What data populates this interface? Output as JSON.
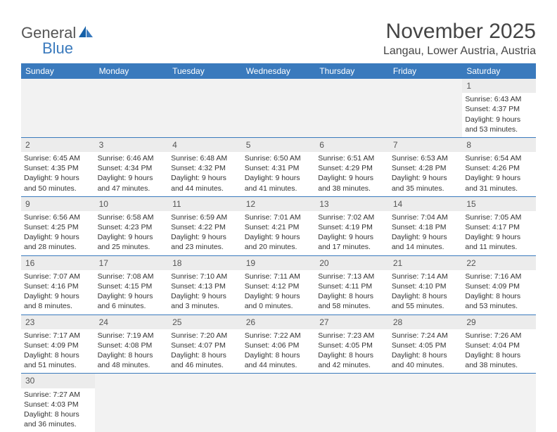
{
  "logo": {
    "text1": "General",
    "text2": "Blue"
  },
  "title": "November 2025",
  "location": "Langau, Lower Austria, Austria",
  "colors": {
    "header_bg": "#3a7abd",
    "header_text": "#ffffff",
    "daynum_bg": "#ececec",
    "border": "#3a7abd",
    "text": "#333333",
    "page_bg": "#ffffff"
  },
  "dayHeaders": [
    "Sunday",
    "Monday",
    "Tuesday",
    "Wednesday",
    "Thursday",
    "Friday",
    "Saturday"
  ],
  "weeks": [
    [
      null,
      null,
      null,
      null,
      null,
      null,
      {
        "n": "1",
        "sr": "6:43 AM",
        "ss": "4:37 PM",
        "dl": "9 hours and 53 minutes."
      }
    ],
    [
      {
        "n": "2",
        "sr": "6:45 AM",
        "ss": "4:35 PM",
        "dl": "9 hours and 50 minutes."
      },
      {
        "n": "3",
        "sr": "6:46 AM",
        "ss": "4:34 PM",
        "dl": "9 hours and 47 minutes."
      },
      {
        "n": "4",
        "sr": "6:48 AM",
        "ss": "4:32 PM",
        "dl": "9 hours and 44 minutes."
      },
      {
        "n": "5",
        "sr": "6:50 AM",
        "ss": "4:31 PM",
        "dl": "9 hours and 41 minutes."
      },
      {
        "n": "6",
        "sr": "6:51 AM",
        "ss": "4:29 PM",
        "dl": "9 hours and 38 minutes."
      },
      {
        "n": "7",
        "sr": "6:53 AM",
        "ss": "4:28 PM",
        "dl": "9 hours and 35 minutes."
      },
      {
        "n": "8",
        "sr": "6:54 AM",
        "ss": "4:26 PM",
        "dl": "9 hours and 31 minutes."
      }
    ],
    [
      {
        "n": "9",
        "sr": "6:56 AM",
        "ss": "4:25 PM",
        "dl": "9 hours and 28 minutes."
      },
      {
        "n": "10",
        "sr": "6:58 AM",
        "ss": "4:23 PM",
        "dl": "9 hours and 25 minutes."
      },
      {
        "n": "11",
        "sr": "6:59 AM",
        "ss": "4:22 PM",
        "dl": "9 hours and 23 minutes."
      },
      {
        "n": "12",
        "sr": "7:01 AM",
        "ss": "4:21 PM",
        "dl": "9 hours and 20 minutes."
      },
      {
        "n": "13",
        "sr": "7:02 AM",
        "ss": "4:19 PM",
        "dl": "9 hours and 17 minutes."
      },
      {
        "n": "14",
        "sr": "7:04 AM",
        "ss": "4:18 PM",
        "dl": "9 hours and 14 minutes."
      },
      {
        "n": "15",
        "sr": "7:05 AM",
        "ss": "4:17 PM",
        "dl": "9 hours and 11 minutes."
      }
    ],
    [
      {
        "n": "16",
        "sr": "7:07 AM",
        "ss": "4:16 PM",
        "dl": "9 hours and 8 minutes."
      },
      {
        "n": "17",
        "sr": "7:08 AM",
        "ss": "4:15 PM",
        "dl": "9 hours and 6 minutes."
      },
      {
        "n": "18",
        "sr": "7:10 AM",
        "ss": "4:13 PM",
        "dl": "9 hours and 3 minutes."
      },
      {
        "n": "19",
        "sr": "7:11 AM",
        "ss": "4:12 PM",
        "dl": "9 hours and 0 minutes."
      },
      {
        "n": "20",
        "sr": "7:13 AM",
        "ss": "4:11 PM",
        "dl": "8 hours and 58 minutes."
      },
      {
        "n": "21",
        "sr": "7:14 AM",
        "ss": "4:10 PM",
        "dl": "8 hours and 55 minutes."
      },
      {
        "n": "22",
        "sr": "7:16 AM",
        "ss": "4:09 PM",
        "dl": "8 hours and 53 minutes."
      }
    ],
    [
      {
        "n": "23",
        "sr": "7:17 AM",
        "ss": "4:09 PM",
        "dl": "8 hours and 51 minutes."
      },
      {
        "n": "24",
        "sr": "7:19 AM",
        "ss": "4:08 PM",
        "dl": "8 hours and 48 minutes."
      },
      {
        "n": "25",
        "sr": "7:20 AM",
        "ss": "4:07 PM",
        "dl": "8 hours and 46 minutes."
      },
      {
        "n": "26",
        "sr": "7:22 AM",
        "ss": "4:06 PM",
        "dl": "8 hours and 44 minutes."
      },
      {
        "n": "27",
        "sr": "7:23 AM",
        "ss": "4:05 PM",
        "dl": "8 hours and 42 minutes."
      },
      {
        "n": "28",
        "sr": "7:24 AM",
        "ss": "4:05 PM",
        "dl": "8 hours and 40 minutes."
      },
      {
        "n": "29",
        "sr": "7:26 AM",
        "ss": "4:04 PM",
        "dl": "8 hours and 38 minutes."
      }
    ],
    [
      {
        "n": "30",
        "sr": "7:27 AM",
        "ss": "4:03 PM",
        "dl": "8 hours and 36 minutes."
      },
      null,
      null,
      null,
      null,
      null,
      null
    ]
  ],
  "labels": {
    "sunrise": "Sunrise: ",
    "sunset": "Sunset: ",
    "daylight": "Daylight: "
  }
}
